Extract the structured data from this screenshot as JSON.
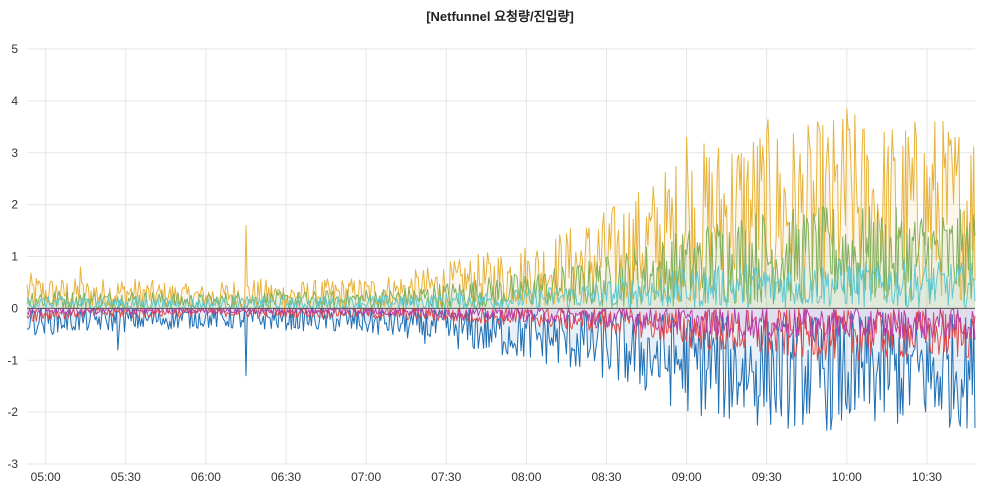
{
  "panel": {
    "title": "[Netfunnel 요청량/진입량]"
  },
  "chart_data": {
    "type": "line",
    "title": "[Netfunnel 요청량/진입량]",
    "xlabel": "",
    "ylabel": "",
    "ylim": [
      -3,
      5
    ],
    "yticks": [
      "5",
      "4",
      "3",
      "2",
      "1",
      "0",
      "-1",
      "-2",
      "-3"
    ],
    "xlim": [
      "04:53",
      "10:48"
    ],
    "xticks": [
      "05:00",
      "05:30",
      "06:00",
      "06:30",
      "07:00",
      "07:30",
      "08:00",
      "08:30",
      "09:00",
      "09:30",
      "10:00",
      "10:30"
    ],
    "grid": true,
    "legend": "none",
    "colors": {
      "grid": "#e6e6e6",
      "zero_line": "#555555",
      "orange": "#e8b33c",
      "green": "#7fb05d",
      "cyan": "#5fc8d0",
      "blue": "#1f6fb4",
      "red": "#e04c4c",
      "magenta": "#b53ea6"
    },
    "x": [
      "04:53",
      "05:00",
      "05:15",
      "05:30",
      "05:45",
      "06:00",
      "06:15",
      "06:30",
      "06:45",
      "07:00",
      "07:15",
      "07:30",
      "07:45",
      "08:00",
      "08:15",
      "08:30",
      "08:45",
      "09:00",
      "09:15",
      "09:30",
      "09:45",
      "10:00",
      "10:15",
      "10:30",
      "10:48"
    ],
    "series": [
      {
        "color": "orange",
        "fill": true,
        "values": [
          0.35,
          0.3,
          0.28,
          0.3,
          0.25,
          0.22,
          0.3,
          0.25,
          0.28,
          0.3,
          0.35,
          0.45,
          0.55,
          0.65,
          0.8,
          1.0,
          1.25,
          1.6,
          1.8,
          1.9,
          1.85,
          2.0,
          1.9,
          1.95,
          1.9
        ],
        "peaks": [
          [
            "05:13",
            0.8
          ],
          [
            "06:15",
            1.6
          ],
          [
            "09:00",
            3.3
          ],
          [
            "09:30",
            3.4
          ],
          [
            "10:00",
            3.85
          ],
          [
            "10:33",
            3.6
          ]
        ]
      },
      {
        "color": "green",
        "fill": true,
        "values": [
          0.2,
          0.18,
          0.15,
          0.17,
          0.15,
          0.13,
          0.16,
          0.15,
          0.16,
          0.18,
          0.2,
          0.25,
          0.3,
          0.35,
          0.42,
          0.52,
          0.65,
          0.8,
          0.95,
          1.0,
          1.0,
          1.05,
          1.0,
          1.0,
          0.98
        ]
      },
      {
        "color": "cyan",
        "fill": true,
        "values": [
          0.12,
          0.1,
          0.1,
          0.1,
          0.09,
          0.08,
          0.1,
          0.1,
          0.1,
          0.11,
          0.12,
          0.14,
          0.16,
          0.18,
          0.22,
          0.27,
          0.32,
          0.38,
          0.42,
          0.45,
          0.44,
          0.47,
          0.45,
          0.45,
          0.45
        ]
      },
      {
        "color": "blue",
        "fill": true,
        "values": [
          -0.25,
          -0.25,
          -0.22,
          -0.22,
          -0.2,
          -0.18,
          -0.2,
          -0.2,
          -0.22,
          -0.25,
          -0.3,
          -0.38,
          -0.45,
          -0.52,
          -0.6,
          -0.72,
          -0.88,
          -1.05,
          -1.15,
          -1.2,
          -1.2,
          -1.25,
          -1.2,
          -1.2,
          -1.2
        ],
        "peaks": [
          [
            "05:27",
            -0.8
          ],
          [
            "06:15",
            -1.3
          ],
          [
            "09:30",
            -1.8
          ],
          [
            "10:03",
            -1.95
          ],
          [
            "10:33",
            -1.9
          ]
        ]
      },
      {
        "color": "red",
        "fill": false,
        "values": [
          -0.12,
          -0.1,
          -0.08,
          -0.08,
          -0.07,
          -0.06,
          -0.07,
          -0.07,
          -0.08,
          -0.08,
          -0.1,
          -0.12,
          -0.14,
          -0.16,
          -0.2,
          -0.24,
          -0.3,
          -0.38,
          -0.45,
          -0.5,
          -0.5,
          -0.52,
          -0.5,
          -0.5,
          -0.5
        ]
      },
      {
        "color": "magenta",
        "fill": true,
        "values": [
          -0.05,
          -0.05,
          -0.04,
          -0.04,
          -0.04,
          -0.03,
          -0.04,
          -0.04,
          -0.04,
          -0.05,
          -0.06,
          -0.08,
          -0.1,
          -0.12,
          -0.14,
          -0.17,
          -0.2,
          -0.25,
          -0.28,
          -0.3,
          -0.3,
          -0.31,
          -0.3,
          -0.3,
          -0.3
        ]
      }
    ]
  }
}
